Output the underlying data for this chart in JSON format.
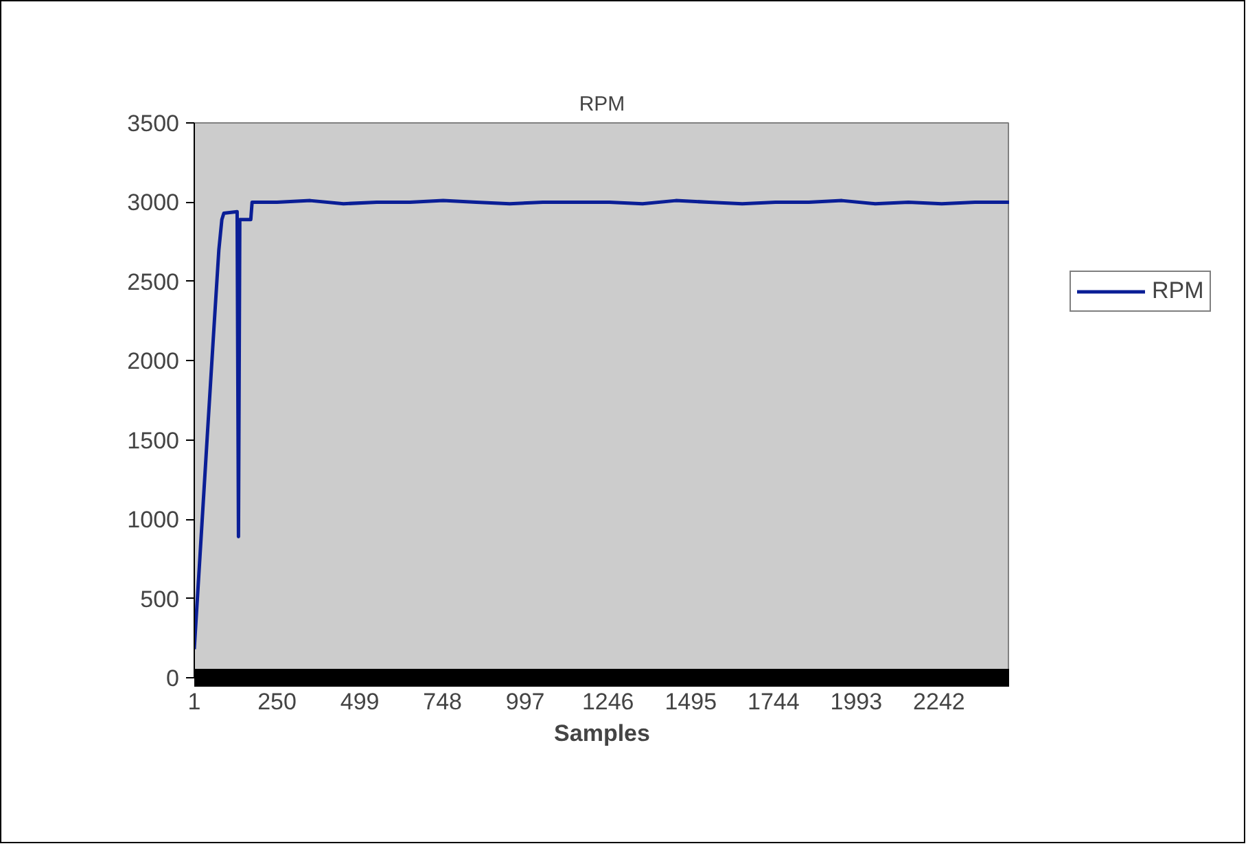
{
  "chart_data": {
    "type": "line",
    "title": "RPM",
    "xlabel": "Samples",
    "xlim": [
      1,
      2455
    ],
    "xticks": [
      1,
      250,
      499,
      748,
      997,
      1246,
      1495,
      1744,
      1993,
      2242
    ],
    "ylim": [
      0,
      3500
    ],
    "yticks": [
      0,
      500,
      1000,
      1500,
      2000,
      2500,
      3000,
      3500
    ],
    "grid": false,
    "legend": "right",
    "marker": "none",
    "line_style": "solid",
    "series": [
      {
        "name": "RPM",
        "color": "#0a1e96",
        "x": [
          1,
          20,
          40,
          60,
          75,
          84,
          90,
          130,
          134,
          138,
          171,
          175,
          250,
          350,
          450,
          550,
          650,
          750,
          850,
          950,
          1050,
          1150,
          1250,
          1350,
          1450,
          1550,
          1650,
          1750,
          1850,
          1950,
          2050,
          2150,
          2250,
          2350,
          2455
        ],
        "values": [
          180,
          830,
          1520,
          2200,
          2700,
          2890,
          2930,
          2940,
          890,
          2890,
          2890,
          3000,
          3000,
          3010,
          2990,
          3000,
          3000,
          3010,
          3000,
          2990,
          3000,
          3000,
          3000,
          2990,
          3010,
          3000,
          2990,
          3000,
          3000,
          3010,
          2990,
          3000,
          2990,
          3000,
          3000
        ]
      }
    ]
  }
}
